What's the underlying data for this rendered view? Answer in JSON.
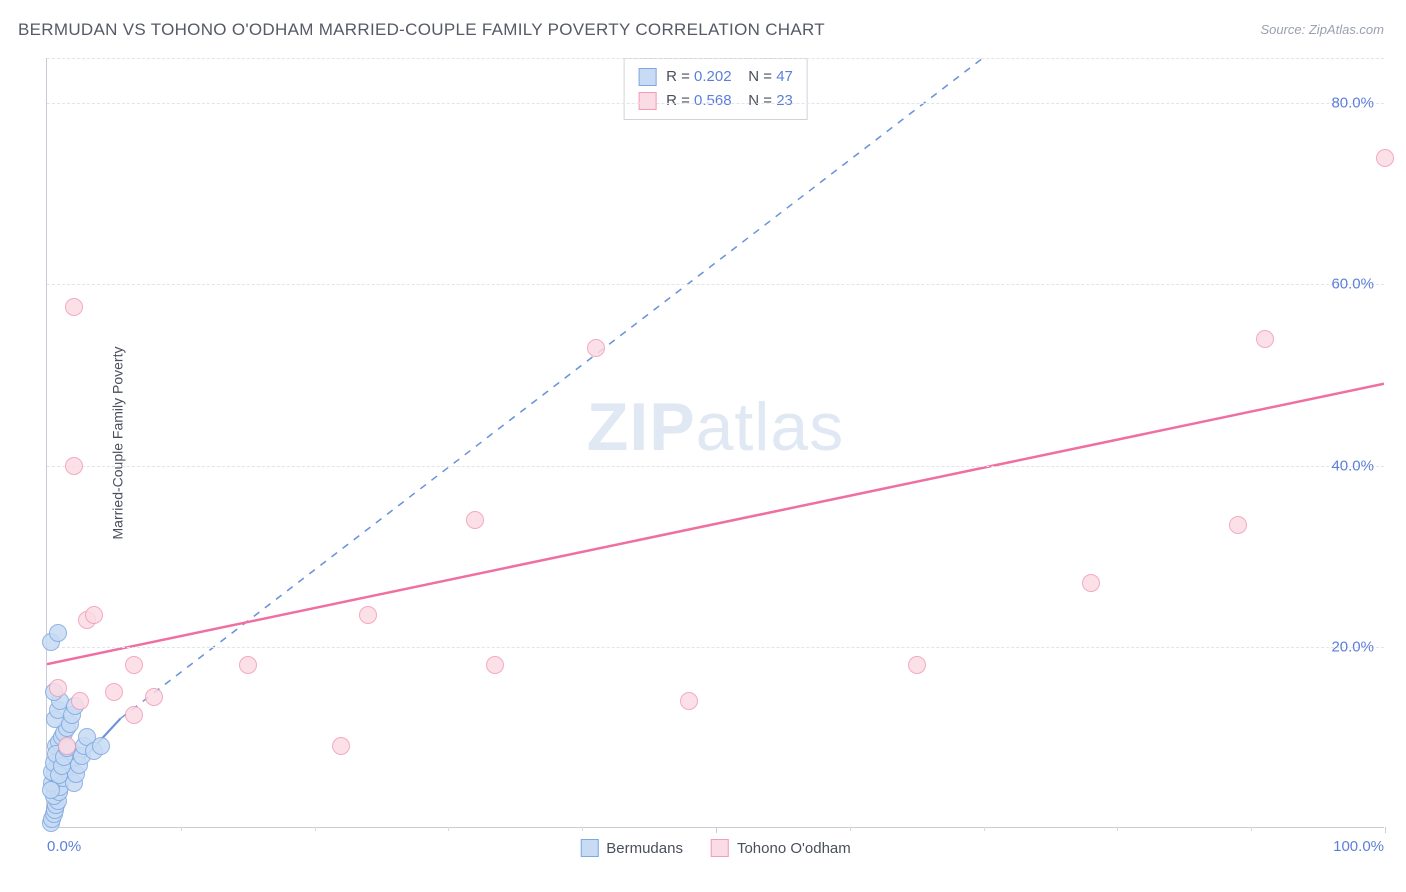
{
  "title": "BERMUDAN VS TOHONO O'ODHAM MARRIED-COUPLE FAMILY POVERTY CORRELATION CHART",
  "source_label": "Source: ",
  "source_value": "ZipAtlas.com",
  "watermark_zip": "ZIP",
  "watermark_atlas": "atlas",
  "ylabel": "Married-Couple Family Poverty",
  "chart": {
    "type": "scatter",
    "xlim": [
      0,
      100
    ],
    "ylim": [
      0,
      85
    ],
    "y_ticks": [
      20,
      40,
      60,
      80
    ],
    "y_tick_labels": [
      "20.0%",
      "40.0%",
      "60.0%",
      "80.0%"
    ],
    "x_tick_left": "0.0%",
    "x_tick_right": "100.0%",
    "x_major_ticks": [
      50,
      100
    ],
    "x_minor_ticks": [
      10,
      20,
      30,
      40,
      60,
      70,
      80,
      90
    ],
    "grid_color": "#e2e4ea",
    "axis_color": "#c9ccd4",
    "background_color": "#ffffff",
    "label_color": "#5b7fd9",
    "marker_radius": 9,
    "series": [
      {
        "name": "Bermudans",
        "fill": "#c7dbf4",
        "stroke": "#7fa8e0",
        "R": "0.202",
        "N": "47",
        "regression": {
          "x1": 0.5,
          "y1": 4,
          "x2": 5.5,
          "y2": 12,
          "style": "solid",
          "color": "#6a93db",
          "width": 2.2,
          "extend": {
            "x2": 70,
            "y2": 85,
            "style": "dashed"
          }
        },
        "points": [
          [
            0.3,
            0.5
          ],
          [
            0.4,
            1.0
          ],
          [
            0.5,
            1.5
          ],
          [
            0.6,
            2.0
          ],
          [
            0.7,
            2.5
          ],
          [
            0.8,
            3.0
          ],
          [
            0.5,
            3.5
          ],
          [
            0.9,
            4.0
          ],
          [
            1.0,
            4.5
          ],
          [
            0.4,
            5.0
          ],
          [
            1.2,
            5.5
          ],
          [
            0.6,
            6.0
          ],
          [
            1.4,
            6.5
          ],
          [
            0.8,
            7.0
          ],
          [
            1.6,
            7.5
          ],
          [
            1.0,
            8.0
          ],
          [
            1.8,
            8.5
          ],
          [
            0.7,
            9.0
          ],
          [
            2.0,
            5.0
          ],
          [
            0.9,
            9.5
          ],
          [
            2.2,
            6.0
          ],
          [
            1.1,
            10.0
          ],
          [
            2.4,
            7.0
          ],
          [
            1.3,
            10.5
          ],
          [
            2.6,
            8.0
          ],
          [
            1.5,
            11.0
          ],
          [
            2.8,
            9.0
          ],
          [
            0.6,
            12.0
          ],
          [
            3.0,
            10.0
          ],
          [
            1.7,
            11.5
          ],
          [
            0.8,
            13.0
          ],
          [
            1.9,
            12.5
          ],
          [
            1.0,
            14.0
          ],
          [
            2.1,
            13.5
          ],
          [
            0.5,
            15.0
          ],
          [
            0.3,
            20.5
          ],
          [
            0.8,
            21.5
          ],
          [
            3.5,
            8.5
          ],
          [
            4.0,
            9.0
          ],
          [
            0.4,
            6.2
          ],
          [
            0.5,
            7.2
          ],
          [
            0.7,
            8.2
          ],
          [
            0.3,
            4.2
          ],
          [
            0.9,
            5.8
          ],
          [
            1.1,
            6.8
          ],
          [
            1.3,
            7.8
          ],
          [
            1.5,
            8.8
          ]
        ]
      },
      {
        "name": "Tohono O'odham",
        "fill": "#fbdbe4",
        "stroke": "#f19cb8",
        "R": "0.568",
        "N": "23",
        "regression": {
          "x1": 0,
          "y1": 18,
          "x2": 100,
          "y2": 49,
          "style": "solid",
          "color": "#ef6fa0",
          "width": 2.5
        },
        "points": [
          [
            2.0,
            57.5
          ],
          [
            2.0,
            40.0
          ],
          [
            3.0,
            23.0
          ],
          [
            3.5,
            23.5
          ],
          [
            0.8,
            15.5
          ],
          [
            2.5,
            14.0
          ],
          [
            5.0,
            15.0
          ],
          [
            6.5,
            18.0
          ],
          [
            8.0,
            14.5
          ],
          [
            6.5,
            12.5
          ],
          [
            15.0,
            18.0
          ],
          [
            22.0,
            9.0
          ],
          [
            24.0,
            23.5
          ],
          [
            32.0,
            34.0
          ],
          [
            33.5,
            18.0
          ],
          [
            41.0,
            53.0
          ],
          [
            48.0,
            14.0
          ],
          [
            65.0,
            18.0
          ],
          [
            78.0,
            27.0
          ],
          [
            89.0,
            33.5
          ],
          [
            91.0,
            54.0
          ],
          [
            100.0,
            74.0
          ],
          [
            1.5,
            9.0
          ]
        ]
      }
    ]
  },
  "legend_bottom": [
    {
      "label": "Bermudans",
      "fill": "#c7dbf4",
      "stroke": "#7fa8e0"
    },
    {
      "label": "Tohono O'odham",
      "fill": "#fbdbe4",
      "stroke": "#f19cb8"
    }
  ]
}
